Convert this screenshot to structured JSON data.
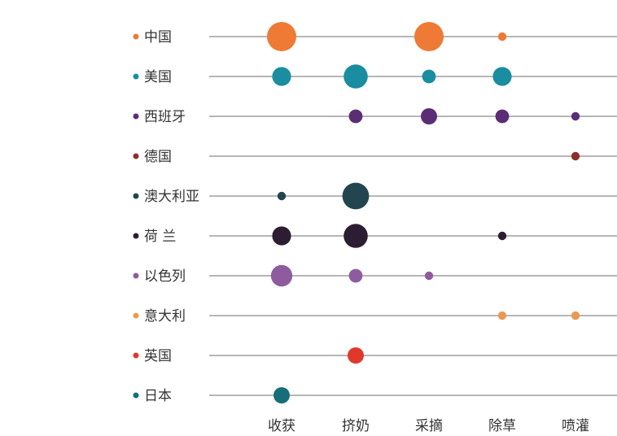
{
  "chart_data": {
    "type": "scatter",
    "categories": [
      "收获",
      "挤奶",
      "采摘",
      "除草",
      "喷灌"
    ],
    "series": [
      {
        "name": "中国",
        "color": "#ee7a35",
        "values": [
          5,
          null,
          5,
          1,
          null
        ]
      },
      {
        "name": "美国",
        "color": "#1a8ea0",
        "values": [
          3,
          4,
          2,
          3,
          null
        ]
      },
      {
        "name": "西班牙",
        "color": "#5b2d74",
        "values": [
          null,
          2,
          2.5,
          2,
          1
        ]
      },
      {
        "name": "德国",
        "color": "#8c2f28",
        "values": [
          null,
          null,
          null,
          null,
          1
        ]
      },
      {
        "name": "澳大利亚",
        "color": "#23454f",
        "values": [
          1,
          4.5,
          null,
          null,
          null
        ]
      },
      {
        "name": "荷 兰",
        "color": "#2c1d32",
        "values": [
          3,
          4,
          null,
          1,
          null
        ]
      },
      {
        "name": "以色列",
        "color": "#8e5c9e",
        "values": [
          3.5,
          2,
          1,
          null,
          null
        ]
      },
      {
        "name": "意大利",
        "color": "#e99a52",
        "values": [
          null,
          null,
          null,
          1,
          1
        ]
      },
      {
        "name": "英国",
        "color": "#e0392c",
        "values": [
          null,
          2.5,
          null,
          null,
          null
        ]
      },
      {
        "name": "日本",
        "color": "#176e78",
        "values": [
          2.5,
          null,
          null,
          null,
          null
        ]
      }
    ],
    "grid": true,
    "legend": "left"
  }
}
